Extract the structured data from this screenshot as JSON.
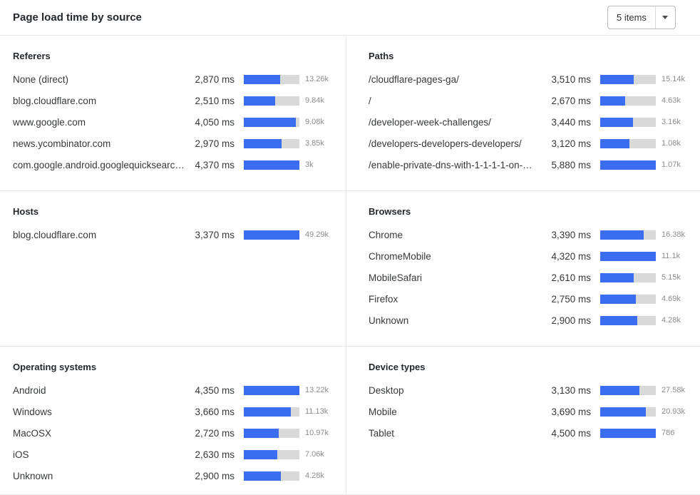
{
  "header": {
    "title": "Page load time by source",
    "items_dropdown": {
      "value": "5 items"
    }
  },
  "colors": {
    "bar_fill": "#3b6df0",
    "bar_track": "#d9d9d9"
  },
  "sections": [
    {
      "title": "Referers",
      "rows": [
        {
          "label": "None (direct)",
          "time": "2,870 ms",
          "ms": 2870,
          "count": "13.26k"
        },
        {
          "label": "blog.cloudflare.com",
          "time": "2,510 ms",
          "ms": 2510,
          "count": "9.84k"
        },
        {
          "label": "www.google.com",
          "time": "4,050 ms",
          "ms": 4050,
          "count": "9.08k"
        },
        {
          "label": "news.ycombinator.com",
          "time": "2,970 ms",
          "ms": 2970,
          "count": "3.85k"
        },
        {
          "label": "com.google.android.googlequicksearc…",
          "time": "4,370 ms",
          "ms": 4370,
          "count": "3k"
        }
      ]
    },
    {
      "title": "Paths",
      "rows": [
        {
          "label": "/cloudflare-pages-ga/",
          "time": "3,510 ms",
          "ms": 3510,
          "count": "15.14k"
        },
        {
          "label": "/",
          "time": "2,670 ms",
          "ms": 2670,
          "count": "4.63k"
        },
        {
          "label": "/developer-week-challenges/",
          "time": "3,440 ms",
          "ms": 3440,
          "count": "3.16k"
        },
        {
          "label": "/developers-developers-developers/",
          "time": "3,120 ms",
          "ms": 3120,
          "count": "1.08k"
        },
        {
          "label": "/enable-private-dns-with-1-1-1-1-on-…",
          "time": "5,880 ms",
          "ms": 5880,
          "count": "1.07k"
        }
      ]
    },
    {
      "title": "Hosts",
      "rows": [
        {
          "label": "blog.cloudflare.com",
          "time": "3,370 ms",
          "ms": 3370,
          "count": "49.29k"
        }
      ]
    },
    {
      "title": "Browsers",
      "rows": [
        {
          "label": "Chrome",
          "time": "3,390 ms",
          "ms": 3390,
          "count": "16.38k"
        },
        {
          "label": "ChromeMobile",
          "time": "4,320 ms",
          "ms": 4320,
          "count": "11.1k"
        },
        {
          "label": "MobileSafari",
          "time": "2,610 ms",
          "ms": 2610,
          "count": "5.15k"
        },
        {
          "label": "Firefox",
          "time": "2,750 ms",
          "ms": 2750,
          "count": "4.69k"
        },
        {
          "label": "Unknown",
          "time": "2,900 ms",
          "ms": 2900,
          "count": "4.28k"
        }
      ]
    },
    {
      "title": "Operating systems",
      "rows": [
        {
          "label": "Android",
          "time": "4,350 ms",
          "ms": 4350,
          "count": "13.22k"
        },
        {
          "label": "Windows",
          "time": "3,660 ms",
          "ms": 3660,
          "count": "11.13k"
        },
        {
          "label": "MacOSX",
          "time": "2,720 ms",
          "ms": 2720,
          "count": "10.97k"
        },
        {
          "label": "iOS",
          "time": "2,630 ms",
          "ms": 2630,
          "count": "7.06k"
        },
        {
          "label": "Unknown",
          "time": "2,900 ms",
          "ms": 2900,
          "count": "4.28k"
        }
      ]
    },
    {
      "title": "Device types",
      "rows": [
        {
          "label": "Desktop",
          "time": "3,130 ms",
          "ms": 3130,
          "count": "27.58k"
        },
        {
          "label": "Mobile",
          "time": "3,690 ms",
          "ms": 3690,
          "count": "20.93k"
        },
        {
          "label": "Tablet",
          "time": "4,500 ms",
          "ms": 4500,
          "count": "786"
        }
      ]
    }
  ]
}
